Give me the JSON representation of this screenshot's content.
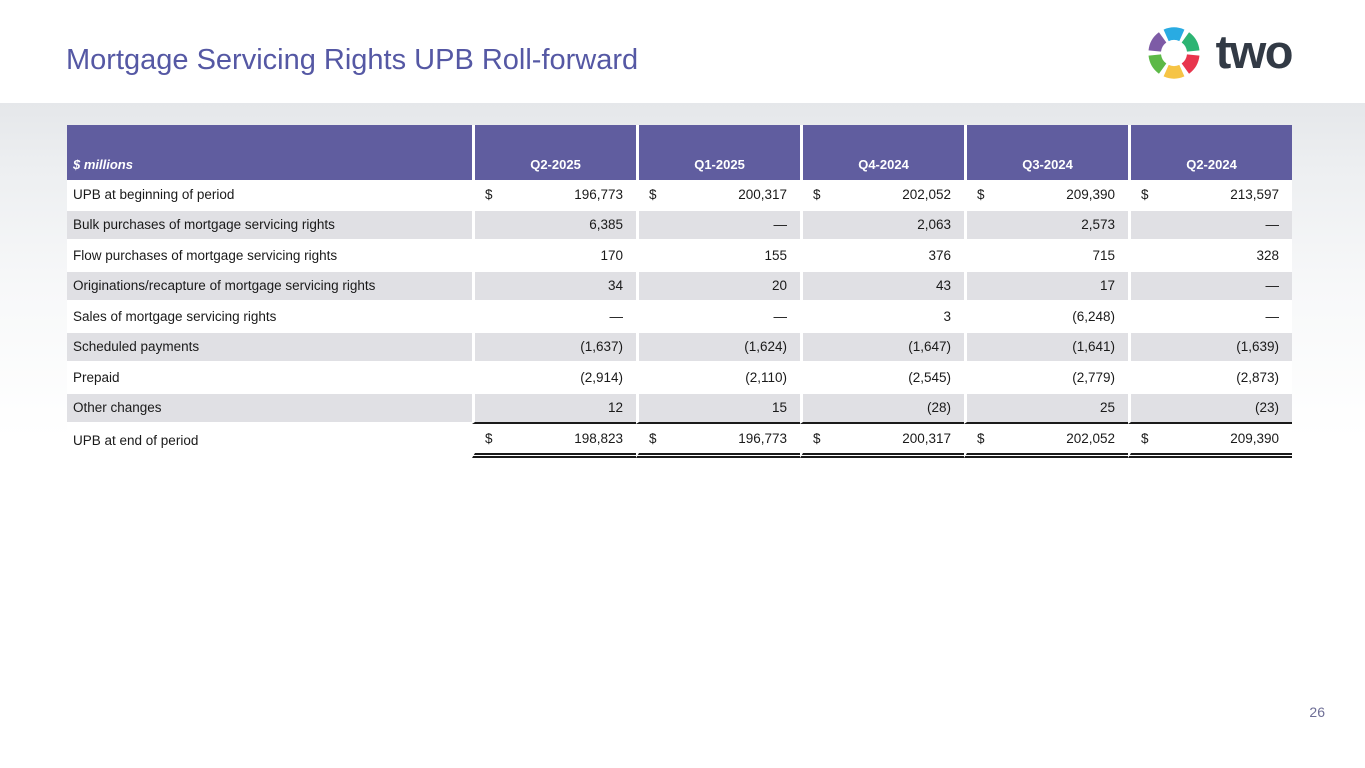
{
  "slide": {
    "title": "Mortgage Servicing Rights UPB Roll-forward",
    "page_number": "26",
    "logo": {
      "text": "two",
      "icon": "pinwheel-icon",
      "segment_colors": [
        "#29ABE2",
        "#2DB473",
        "#E8354D",
        "#F6C445",
        "#5CB947",
        "#7D5BA6"
      ]
    },
    "colors": {
      "title_text": "#5558A4",
      "table_header_bg": "#605D9F",
      "row_alt_bg": "#E0E0E4",
      "band_top": "#E5E7EA"
    }
  },
  "table": {
    "unit_label": "$ millions",
    "currency_symbol": "$",
    "columns": [
      "Q2-2025",
      "Q1-2025",
      "Q4-2024",
      "Q3-2024",
      "Q2-2024"
    ],
    "rows": [
      {
        "label": "UPB at beginning of period",
        "dollar": true,
        "total": false,
        "values": [
          "196,773",
          "200,317",
          "202,052",
          "209,390",
          "213,597"
        ]
      },
      {
        "label": "Bulk purchases of mortgage servicing rights",
        "dollar": false,
        "total": false,
        "values": [
          "6,385",
          "—",
          "2,063",
          "2,573",
          "—"
        ]
      },
      {
        "label": "Flow purchases of mortgage servicing rights",
        "dollar": false,
        "total": false,
        "values": [
          "170",
          "155",
          "376",
          "715",
          "328"
        ]
      },
      {
        "label": "Originations/recapture of mortgage servicing rights",
        "dollar": false,
        "total": false,
        "values": [
          "34",
          "20",
          "43",
          "17",
          "—"
        ]
      },
      {
        "label": "Sales of mortgage servicing rights",
        "dollar": false,
        "total": false,
        "values": [
          "—",
          "—",
          "3",
          "(6,248)",
          "—"
        ]
      },
      {
        "label": "Scheduled payments",
        "dollar": false,
        "total": false,
        "values": [
          "(1,637)",
          "(1,624)",
          "(1,647)",
          "(1,641)",
          "(1,639)"
        ]
      },
      {
        "label": "Prepaid",
        "dollar": false,
        "total": false,
        "values": [
          "(2,914)",
          "(2,110)",
          "(2,545)",
          "(2,779)",
          "(2,873)"
        ]
      },
      {
        "label": "Other changes",
        "dollar": false,
        "total": false,
        "values": [
          "12",
          "15",
          "(28)",
          "25",
          "(23)"
        ]
      },
      {
        "label": "UPB at end of period",
        "dollar": true,
        "total": true,
        "values": [
          "198,823",
          "196,773",
          "200,317",
          "202,052",
          "209,390"
        ]
      }
    ]
  }
}
